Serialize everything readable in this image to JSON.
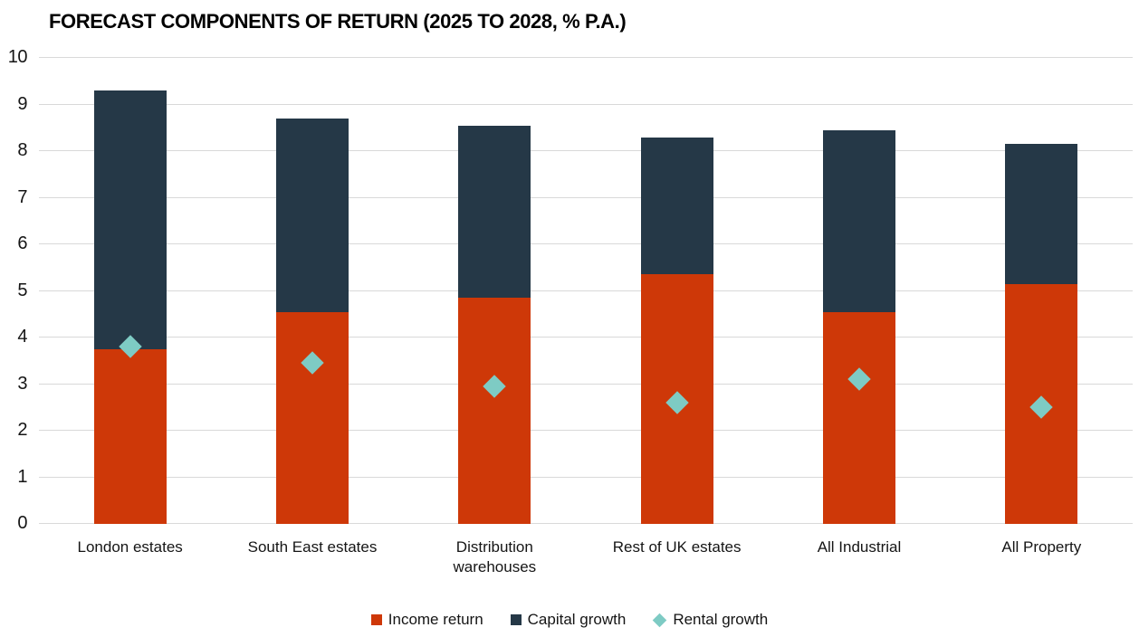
{
  "chart_data": {
    "type": "bar",
    "stacked": true,
    "title": "FORECAST COMPONENTS OF RETURN (2025 TO 2028, % P.A.)",
    "categories": [
      "London estates",
      "South East estates",
      "Distribution warehouses",
      "Rest of UK estates",
      "All Industrial",
      "All Property"
    ],
    "series": [
      {
        "name": "Income return",
        "type": "bar",
        "marker": "square",
        "color": "#ce3808",
        "values": [
          3.75,
          4.55,
          4.85,
          5.35,
          4.55,
          5.15
        ]
      },
      {
        "name": "Capital growth",
        "type": "bar",
        "marker": "square",
        "color": "#253847",
        "values": [
          5.55,
          4.15,
          3.7,
          2.95,
          3.9,
          3.0
        ]
      },
      {
        "name": "Rental growth",
        "type": "scatter",
        "marker": "diamond",
        "color": "#7ecbc4",
        "values": [
          3.8,
          3.45,
          2.95,
          2.6,
          3.1,
          2.5
        ]
      }
    ],
    "stacked_totals": [
      9.3,
      8.7,
      8.55,
      8.3,
      8.45,
      8.15
    ],
    "ylabel": "",
    "xlabel": "",
    "ylim": [
      0,
      10
    ],
    "yticks": [
      0,
      1,
      2,
      3,
      4,
      5,
      6,
      7,
      8,
      9,
      10
    ],
    "grid": "horizontal",
    "gridline_color": "#d9d9d9",
    "legend_position": "bottom"
  }
}
